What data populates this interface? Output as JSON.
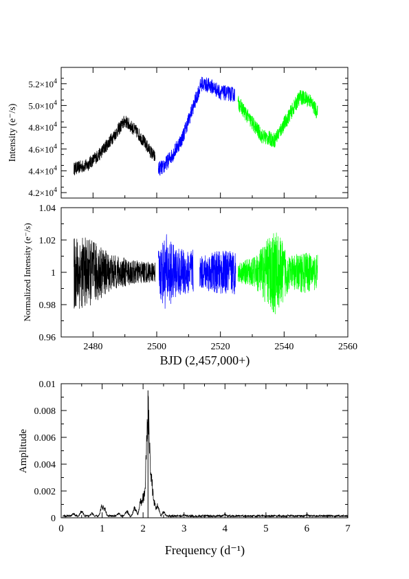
{
  "chart_data": [
    {
      "type": "line",
      "panel": "top",
      "ylabel": "Intensity (e⁻/s)",
      "xlim": [
        2470,
        2560
      ],
      "ylim": [
        41500,
        53500
      ],
      "y_ticks": [
        42000,
        44000,
        46000,
        48000,
        50000,
        52000
      ],
      "y_tick_labels": [
        {
          "mantissa": "4.2×10",
          "exponent": "4"
        },
        {
          "mantissa": "4.4×10",
          "exponent": "4"
        },
        {
          "mantissa": "4.6×10",
          "exponent": "4"
        },
        {
          "mantissa": "4.8×10",
          "exponent": "4"
        },
        {
          "mantissa": "5.0×10",
          "exponent": "4"
        },
        {
          "mantissa": "5.2×10",
          "exponent": "4"
        }
      ],
      "grid": false,
      "series": [
        {
          "color": "#000000",
          "x": [
            2474,
            2478,
            2482,
            2486,
            2490,
            2494,
            2498,
            2499.5
          ],
          "y": [
            44200,
            44500,
            45500,
            47000,
            48600,
            47500,
            45800,
            45200
          ],
          "scatter_amplitude": 600
        },
        {
          "color": "#0000ff",
          "x": [
            2500.5,
            2502,
            2505,
            2508,
            2511,
            2514,
            2517,
            2520,
            2524.5
          ],
          "y": [
            44200,
            44300,
            45500,
            47000,
            49500,
            52000,
            51800,
            51200,
            51000
          ],
          "scatter_amplitude": 700
        },
        {
          "color": "#00ff00",
          "x": [
            2525.5,
            2529,
            2533,
            2537,
            2541,
            2545,
            2548,
            2550.5
          ],
          "y": [
            50300,
            48800,
            47200,
            46800,
            48800,
            50800,
            50500,
            49300
          ],
          "scatter_amplitude": 700
        }
      ]
    },
    {
      "type": "line",
      "panel": "middle",
      "ylabel": "Normalized Intensity (e⁻/s)",
      "xlabel": "BJD (2,457,000+)",
      "xlim": [
        2470,
        2560
      ],
      "ylim": [
        0.96,
        1.04
      ],
      "x_ticks": [
        2480,
        2500,
        2520,
        2540,
        2560
      ],
      "y_ticks": [
        0.96,
        0.98,
        1.0,
        1.02,
        1.04
      ],
      "y_tick_labels": [
        "0.96",
        "0.98",
        "1",
        "1.02",
        "1.04"
      ],
      "grid": false,
      "series": [
        {
          "color": "#000000",
          "x_start": 2474,
          "x_end": 2499.5,
          "center": 1.0,
          "envelope_x": [
            2474,
            2480,
            2486,
            2492,
            2499.5
          ],
          "envelope_y": [
            0.024,
            0.02,
            0.011,
            0.008,
            0.006
          ]
        },
        {
          "color": "#0000ff",
          "x_start": 2500.5,
          "x_end": 2511.5,
          "center": 1.0,
          "envelope_x": [
            2500.5,
            2503,
            2506,
            2511.5
          ],
          "envelope_y": [
            0.015,
            0.024,
            0.015,
            0.014
          ]
        },
        {
          "color": "#0000ff",
          "x_start": 2513.5,
          "x_end": 2524.8,
          "center": 1.0,
          "envelope_x": [
            2513.5,
            2518,
            2524.8
          ],
          "envelope_y": [
            0.01,
            0.013,
            0.014
          ]
        },
        {
          "color": "#00ff00",
          "x_start": 2525.5,
          "x_end": 2550.5,
          "center": 1.0,
          "envelope_x": [
            2525.5,
            2531,
            2537,
            2542,
            2546,
            2550.5
          ],
          "envelope_y": [
            0.006,
            0.01,
            0.028,
            0.01,
            0.013,
            0.011
          ]
        }
      ]
    },
    {
      "type": "line",
      "panel": "bottom",
      "ylabel": "Amplitude",
      "xlabel": "Frequency (d⁻¹)",
      "xlim": [
        0,
        7
      ],
      "ylim": [
        0,
        0.01
      ],
      "x_ticks": [
        0,
        1,
        2,
        3,
        4,
        5,
        6,
        7
      ],
      "y_ticks": [
        0,
        0.002,
        0.004,
        0.006,
        0.008,
        0.01
      ],
      "y_tick_labels": [
        "0",
        "0.002",
        "0.004",
        "0.006",
        "0.008",
        "0.01"
      ],
      "grid": false,
      "series": [
        {
          "color": "#000000",
          "peaks": [
            {
              "x": 0.3,
              "y": 0.0004
            },
            {
              "x": 0.5,
              "y": 0.0006
            },
            {
              "x": 0.75,
              "y": 0.0004
            },
            {
              "x": 1.0,
              "y": 0.0011
            },
            {
              "x": 1.05,
              "y": 0.0009
            },
            {
              "x": 1.4,
              "y": 0.0004
            },
            {
              "x": 1.6,
              "y": 0.0006
            },
            {
              "x": 1.8,
              "y": 0.0009
            },
            {
              "x": 1.95,
              "y": 0.0015
            },
            {
              "x": 2.02,
              "y": 0.0022
            },
            {
              "x": 2.07,
              "y": 0.0028
            },
            {
              "x": 2.12,
              "y": 0.0095
            },
            {
              "x": 2.16,
              "y": 0.0052
            },
            {
              "x": 2.2,
              "y": 0.0035
            },
            {
              "x": 2.26,
              "y": 0.0015
            },
            {
              "x": 2.35,
              "y": 0.0011
            },
            {
              "x": 2.5,
              "y": 0.0005
            },
            {
              "x": 3.0,
              "y": 0.0003
            },
            {
              "x": 4.0,
              "y": 0.0003
            },
            {
              "x": 6.0,
              "y": 0.0003
            }
          ],
          "noise_floor": 0.00018
        }
      ]
    }
  ]
}
